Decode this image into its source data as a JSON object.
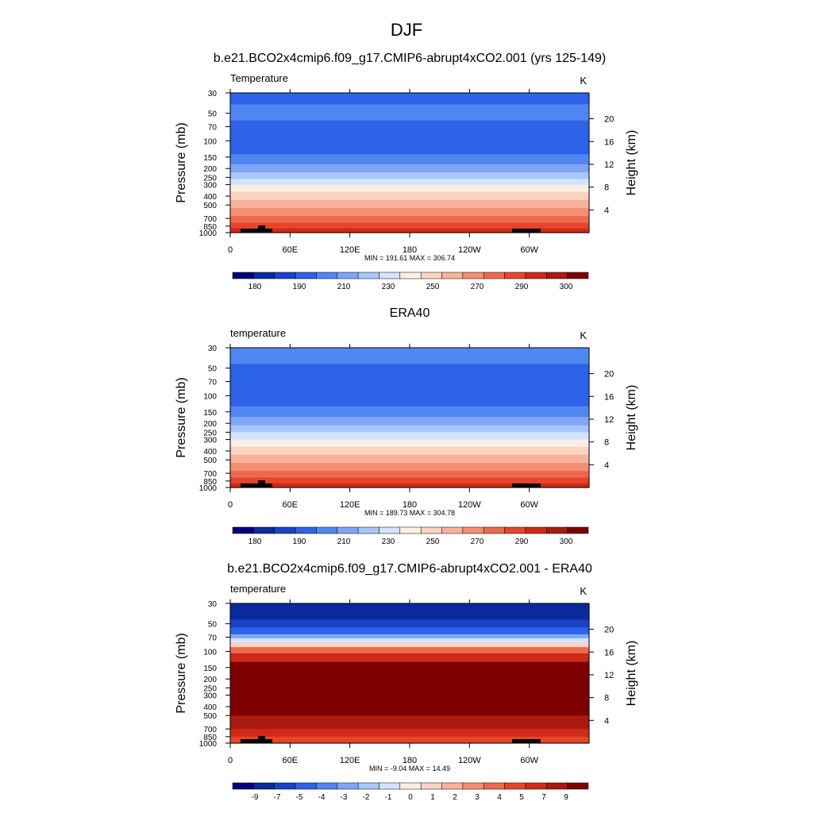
{
  "figure": {
    "title": "DJF"
  },
  "chart_data": [
    {
      "type": "heatmap",
      "title": "b.e21.BCO2x4cmip6.f09_g17.CMIP6-abrupt4xCO2.001 (yrs 125-149)",
      "variable": "Temperature",
      "units": "K",
      "ylabel": "Pressure (mb)",
      "ylabel_right": "Height (km)",
      "pressure_ticks": [
        30,
        50,
        70,
        100,
        150,
        200,
        250,
        300,
        400,
        500,
        700,
        850,
        1000
      ],
      "height_ticks": [
        4,
        8,
        12,
        16,
        20
      ],
      "x_ticks": [
        "0",
        "60E",
        "120E",
        "180",
        "120W",
        "60W"
      ],
      "stats": "MIN = 191.61  MAX = 306.74",
      "colorbar_labels": [
        "180",
        "190",
        "210",
        "230",
        "250",
        "270",
        "290",
        "300"
      ],
      "colorbar_colors": [
        "#00007f",
        "#0a2a9e",
        "#1944c8",
        "#2c63e8",
        "#4f86f2",
        "#7fa6f5",
        "#a8c6fa",
        "#d2e3fc",
        "#fbeee5",
        "#fbd3c0",
        "#f7b29a",
        "#f48e72",
        "#ee6a4c",
        "#e6452c",
        "#cf2a17",
        "#aa1a0e",
        "#7f0000"
      ],
      "levels_by_pressure": [
        {
          "p": 30,
          "band": 3
        },
        {
          "p": 40,
          "band": 4
        },
        {
          "p": 60,
          "band": 3
        },
        {
          "p": 100,
          "band": 3
        },
        {
          "p": 140,
          "band": 4
        },
        {
          "p": 180,
          "band": 5
        },
        {
          "p": 220,
          "band": 6
        },
        {
          "p": 260,
          "band": 7
        },
        {
          "p": 300,
          "band": 8
        },
        {
          "p": 360,
          "band": 9
        },
        {
          "p": 440,
          "band": 10
        },
        {
          "p": 540,
          "band": 11
        },
        {
          "p": 660,
          "band": 12
        },
        {
          "p": 780,
          "band": 13
        },
        {
          "p": 900,
          "band": 14
        },
        {
          "p": 1000,
          "band": 15
        }
      ]
    },
    {
      "type": "heatmap",
      "title": "ERA40",
      "variable": "temperature",
      "units": "K",
      "ylabel": "Pressure (mb)",
      "ylabel_right": "Height (km)",
      "pressure_ticks": [
        30,
        50,
        70,
        100,
        150,
        200,
        250,
        300,
        400,
        500,
        700,
        850,
        1000
      ],
      "height_ticks": [
        4,
        8,
        12,
        16,
        20
      ],
      "x_ticks": [
        "0",
        "60E",
        "120E",
        "180",
        "120W",
        "60W"
      ],
      "stats": "MIN = 189.73  MAX = 304.78",
      "colorbar_labels": [
        "180",
        "190",
        "210",
        "230",
        "250",
        "270",
        "290",
        "300"
      ],
      "colorbar_colors": [
        "#00007f",
        "#0a2a9e",
        "#1944c8",
        "#2c63e8",
        "#4f86f2",
        "#7fa6f5",
        "#a8c6fa",
        "#d2e3fc",
        "#fbeee5",
        "#fbd3c0",
        "#f7b29a",
        "#f48e72",
        "#ee6a4c",
        "#e6452c",
        "#cf2a17",
        "#aa1a0e",
        "#7f0000"
      ],
      "levels_by_pressure": [
        {
          "p": 30,
          "band": 4
        },
        {
          "p": 45,
          "band": 3
        },
        {
          "p": 100,
          "band": 3
        },
        {
          "p": 130,
          "band": 4
        },
        {
          "p": 170,
          "band": 5
        },
        {
          "p": 210,
          "band": 6
        },
        {
          "p": 250,
          "band": 7
        },
        {
          "p": 300,
          "band": 8
        },
        {
          "p": 360,
          "band": 9
        },
        {
          "p": 440,
          "band": 10
        },
        {
          "p": 540,
          "band": 11
        },
        {
          "p": 660,
          "band": 12
        },
        {
          "p": 780,
          "band": 13
        },
        {
          "p": 900,
          "band": 14
        },
        {
          "p": 1000,
          "band": 15
        }
      ]
    },
    {
      "type": "heatmap",
      "title": "b.e21.BCO2x4cmip6.f09_g17.CMIP6-abrupt4xCO2.001 - ERA40",
      "variable": "temperature",
      "units": "K",
      "ylabel": "Pressure (mb)",
      "ylabel_right": "Height (km)",
      "pressure_ticks": [
        30,
        50,
        70,
        100,
        150,
        200,
        250,
        300,
        400,
        500,
        700,
        850,
        1000
      ],
      "height_ticks": [
        4,
        8,
        12,
        16,
        20
      ],
      "x_ticks": [
        "0",
        "60E",
        "120E",
        "180",
        "120W",
        "60W"
      ],
      "stats": "MIN =  -9.04  MAX =  14.49",
      "colorbar_labels": [
        "-9",
        "-7",
        "-5",
        "-4",
        "-3",
        "-2",
        "-1",
        "0",
        "1",
        "2",
        "3",
        "4",
        "5",
        "7",
        "9"
      ],
      "colorbar_colors": [
        "#00007f",
        "#0a2a9e",
        "#1944c8",
        "#2c63e8",
        "#4f86f2",
        "#7fa6f5",
        "#a8c6fa",
        "#d2e3fc",
        "#fbeee5",
        "#fbd3c0",
        "#f7b29a",
        "#f48e72",
        "#ee6a4c",
        "#e6452c",
        "#cf2a17",
        "#aa1a0e",
        "#7f0000"
      ],
      "levels_by_pressure": [
        {
          "p": 30,
          "band": 1
        },
        {
          "p": 45,
          "band": 2
        },
        {
          "p": 55,
          "band": 3
        },
        {
          "p": 65,
          "band": 5
        },
        {
          "p": 72,
          "band": 7
        },
        {
          "p": 80,
          "band": 9
        },
        {
          "p": 90,
          "band": 12
        },
        {
          "p": 105,
          "band": 14
        },
        {
          "p": 130,
          "band": 16
        },
        {
          "p": 500,
          "band": 15
        },
        {
          "p": 700,
          "band": 14
        },
        {
          "p": 850,
          "band": 13
        },
        {
          "p": 1000,
          "band": 13
        }
      ]
    }
  ]
}
